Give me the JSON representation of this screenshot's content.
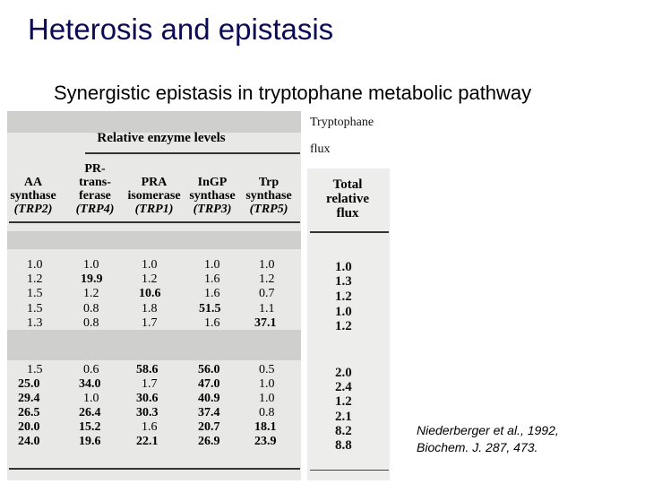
{
  "title": "Heterosis and epistasis",
  "subtitle": "Synergistic epistasis in tryptophane metabolic pathway",
  "flux_label": {
    "line1": "Tryptophane",
    "line2": "flux"
  },
  "table": {
    "group_header": "Relative enzyme levels",
    "columns": [
      {
        "line1": "AA",
        "line2": "synthase",
        "line3": "(TRP2)"
      },
      {
        "line1": "PR-",
        "line1b": "trans-",
        "line2": "ferase",
        "line3": "(TRP4)"
      },
      {
        "line1": "PRA",
        "line2": "isomerase",
        "line3": "(TRP1)"
      },
      {
        "line1": "InGP",
        "line2": "synthase",
        "line3": "(TRP3)"
      },
      {
        "line1": "Trp",
        "line2": "synthase",
        "line3": "(TRP5)"
      }
    ],
    "flux_header": {
      "line1": "Total",
      "line2": "relative",
      "line3": "flux"
    },
    "rows": [
      {
        "values": [
          "1.0",
          "1.0",
          "1.0",
          "1.0",
          "1.0"
        ],
        "bold": [
          false,
          false,
          false,
          false,
          false
        ],
        "flux": "1.0"
      },
      {
        "values": [
          "1.2",
          "19.9",
          "1.2",
          "1.6",
          "1.2"
        ],
        "bold": [
          false,
          true,
          false,
          false,
          false
        ],
        "flux": "1.3"
      },
      {
        "values": [
          "1.5",
          "1.2",
          "10.6",
          "1.6",
          "0.7"
        ],
        "bold": [
          false,
          false,
          true,
          false,
          false
        ],
        "flux": "1.2"
      },
      {
        "values": [
          "1.5",
          "0.8",
          "1.8",
          "51.5",
          "1.1"
        ],
        "bold": [
          false,
          false,
          false,
          true,
          false
        ],
        "flux": "1.0"
      },
      {
        "values": [
          "1.3",
          "0.8",
          "1.7",
          "1.6",
          "37.1"
        ],
        "bold": [
          false,
          false,
          false,
          false,
          true
        ],
        "flux": "1.2"
      },
      {
        "values": [
          "1.5",
          "0.6",
          "58.6",
          "56.0",
          "0.5"
        ],
        "bold": [
          false,
          false,
          true,
          true,
          false
        ],
        "flux": "2.0"
      },
      {
        "values": [
          "25.0",
          "34.0",
          "1.7",
          "47.0",
          "1.0"
        ],
        "bold": [
          true,
          true,
          false,
          true,
          false
        ],
        "flux": "2.4"
      },
      {
        "values": [
          "29.4",
          "1.0",
          "30.6",
          "40.9",
          "1.0"
        ],
        "bold": [
          true,
          false,
          true,
          true,
          false
        ],
        "flux": "1.2"
      },
      {
        "values": [
          "26.5",
          "26.4",
          "30.3",
          "37.4",
          "0.8"
        ],
        "bold": [
          true,
          true,
          true,
          true,
          false
        ],
        "flux": "2.1"
      },
      {
        "values": [
          "20.0",
          "15.2",
          "1.6",
          "20.7",
          "18.1"
        ],
        "bold": [
          true,
          true,
          false,
          true,
          true
        ],
        "flux": "8.2"
      },
      {
        "values": [
          "24.0",
          "19.6",
          "22.1",
          "26.9",
          "23.9"
        ],
        "bold": [
          true,
          true,
          true,
          true,
          true
        ],
        "flux": "8.8"
      }
    ]
  },
  "citation": {
    "line1": "Niederberger et al., 1992,",
    "line2": "Biochem. J. 287, 473."
  }
}
